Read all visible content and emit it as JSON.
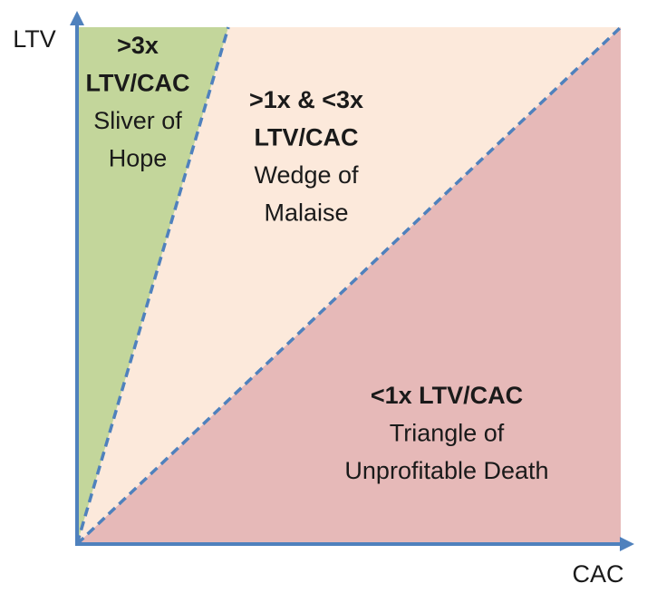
{
  "axes": {
    "y_label": "LTV",
    "x_label": "CAC"
  },
  "regions": [
    {
      "bold_lines": [
        ">3x",
        "LTV/CAC"
      ],
      "lines": [
        "Sliver of",
        "Hope"
      ]
    },
    {
      "bold_lines": [
        ">1x & <3x",
        "LTV/CAC"
      ],
      "lines": [
        "Wedge of",
        "Malaise"
      ]
    },
    {
      "bold_lines": [
        "<1x LTV/CAC"
      ],
      "lines": [
        "Triangle of",
        "Unprofitable Death"
      ]
    }
  ]
}
